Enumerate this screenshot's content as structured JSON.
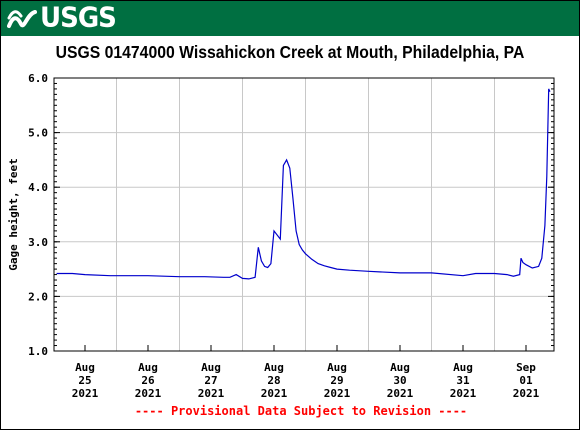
{
  "header": {
    "logo_text": "USGS",
    "banner_color": "#006f41"
  },
  "chart_data": {
    "type": "line",
    "title": "USGS 01474000 Wissahickon Creek at Mouth, Philadelphia, PA",
    "ylabel": "Gage height, feet",
    "xlabel": "",
    "ylim": [
      1.0,
      6.0
    ],
    "y_ticks": [
      "1.0",
      "2.0",
      "3.0",
      "4.0",
      "5.0",
      "6.0"
    ],
    "x_ticks": [
      {
        "month": "Aug",
        "day": "25",
        "year": "2021"
      },
      {
        "month": "Aug",
        "day": "26",
        "year": "2021"
      },
      {
        "month": "Aug",
        "day": "27",
        "year": "2021"
      },
      {
        "month": "Aug",
        "day": "28",
        "year": "2021"
      },
      {
        "month": "Aug",
        "day": "29",
        "year": "2021"
      },
      {
        "month": "Aug",
        "day": "30",
        "year": "2021"
      },
      {
        "month": "Aug",
        "day": "31",
        "year": "2021"
      },
      {
        "month": "Sep",
        "day": "01",
        "year": "2021"
      }
    ],
    "grid": true,
    "line_color": "#0000cc",
    "series": [
      {
        "x_days_since": "2021-08-25",
        "x": [
          -0.45,
          -0.2,
          0.0,
          0.4,
          1.0,
          1.5,
          1.9,
          2.2,
          2.3,
          2.4,
          2.5,
          2.6,
          2.7,
          2.75,
          2.8,
          2.85,
          2.9,
          2.95,
          3.0,
          3.1,
          3.15,
          3.2,
          3.25,
          3.3,
          3.35,
          3.4,
          3.45,
          3.5,
          3.6,
          3.7,
          3.8,
          3.9,
          4.0,
          4.2,
          4.5,
          5.0,
          5.5,
          6.0,
          6.2,
          6.5,
          6.7,
          6.8,
          6.9,
          6.92,
          6.95,
          7.0,
          7.1,
          7.2,
          7.25,
          7.3,
          7.33,
          7.36,
          7.38
        ],
        "y": [
          2.42,
          2.42,
          2.4,
          2.38,
          2.38,
          2.36,
          2.36,
          2.35,
          2.35,
          2.4,
          2.33,
          2.32,
          2.35,
          2.9,
          2.65,
          2.55,
          2.53,
          2.6,
          3.2,
          3.05,
          4.4,
          4.5,
          4.35,
          3.8,
          3.2,
          2.95,
          2.85,
          2.78,
          2.68,
          2.6,
          2.56,
          2.53,
          2.5,
          2.48,
          2.46,
          2.43,
          2.43,
          2.38,
          2.42,
          2.42,
          2.4,
          2.37,
          2.4,
          2.7,
          2.62,
          2.58,
          2.52,
          2.55,
          2.7,
          3.3,
          4.2,
          5.8,
          5.75
        ]
      }
    ],
    "footnote": "---- Provisional Data Subject to Revision ----"
  }
}
